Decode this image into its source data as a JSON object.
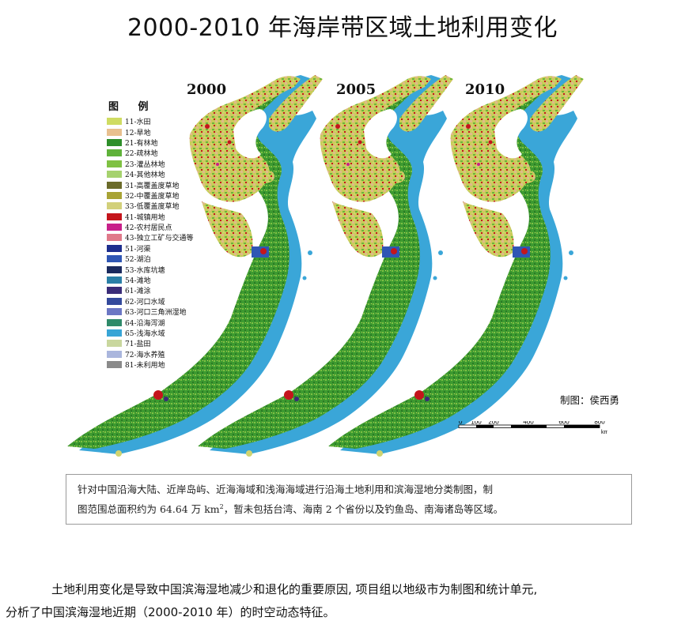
{
  "title": "2000-2010 年海岸带区域土地利用变化",
  "legend": {
    "title": "图 例",
    "items": [
      {
        "label": "11-水田",
        "color": "#cfdc62"
      },
      {
        "label": "12-旱地",
        "color": "#e8c08f"
      },
      {
        "label": "21-有林地",
        "color": "#2e8f2a"
      },
      {
        "label": "22-疏林地",
        "color": "#5fb23a"
      },
      {
        "label": "23-灌丛林地",
        "color": "#7fc143"
      },
      {
        "label": "24-其他林地",
        "color": "#a6d26e"
      },
      {
        "label": "31-高覆盖度草地",
        "color": "#6b6b2a"
      },
      {
        "label": "32-中覆盖度草地",
        "color": "#a8a335"
      },
      {
        "label": "33-低覆盖度草地",
        "color": "#d2d07a"
      },
      {
        "label": "41-城镇用地",
        "color": "#c4151c"
      },
      {
        "label": "42-农村居民点",
        "color": "#c8208a"
      },
      {
        "label": "43-独立工矿与交通等",
        "color": "#e07a8a"
      },
      {
        "label": "51-河渠",
        "color": "#1e2f8e"
      },
      {
        "label": "52-湖泊",
        "color": "#2f56b4"
      },
      {
        "label": "53-水库坑塘",
        "color": "#1b2a5e"
      },
      {
        "label": "54-滩地",
        "color": "#2a7fa6"
      },
      {
        "label": "61-滩涂",
        "color": "#3a2c78"
      },
      {
        "label": "62-河口水域",
        "color": "#344a9c"
      },
      {
        "label": "63-河口三角洲湿地",
        "color": "#6c77c4"
      },
      {
        "label": "64-沿海泻湖",
        "color": "#2f8a6a"
      },
      {
        "label": "65-浅海水域",
        "color": "#38a5d6"
      },
      {
        "label": "71-盐田",
        "color": "#c9d79e"
      },
      {
        "label": "72-海水养殖",
        "color": "#aab6dd"
      },
      {
        "label": "81-未利用地",
        "color": "#8a8a8a"
      }
    ]
  },
  "maps": [
    {
      "year": "2000"
    },
    {
      "year": "2005"
    },
    {
      "year": "2010"
    }
  ],
  "credit": "制图：侯西勇",
  "scale": {
    "ticks": [
      "0",
      "100",
      "200",
      "400",
      "600",
      "800"
    ],
    "unit": "km"
  },
  "note": {
    "line1": "针对中国沿海大陆、近岸岛屿、近海海域和浅海海域进行沿海土地利用和滨海湿地分类制图，制",
    "line2_pre": "图范围总面积约为 64.64 万 km",
    "line2_sup": "2",
    "line2_post": "，暂未包括台湾、海南 2 个省份以及钓鱼岛、南海诸岛等区域。"
  },
  "paragraph": {
    "line1": "土地利用变化是导致中国滨海湿地减少和退化的重要原因, 项目组以地级市为制图和统计单元,",
    "line2": "分析了中国滨海湿地近期（2000-2010 年）的时空动态特征。"
  }
}
